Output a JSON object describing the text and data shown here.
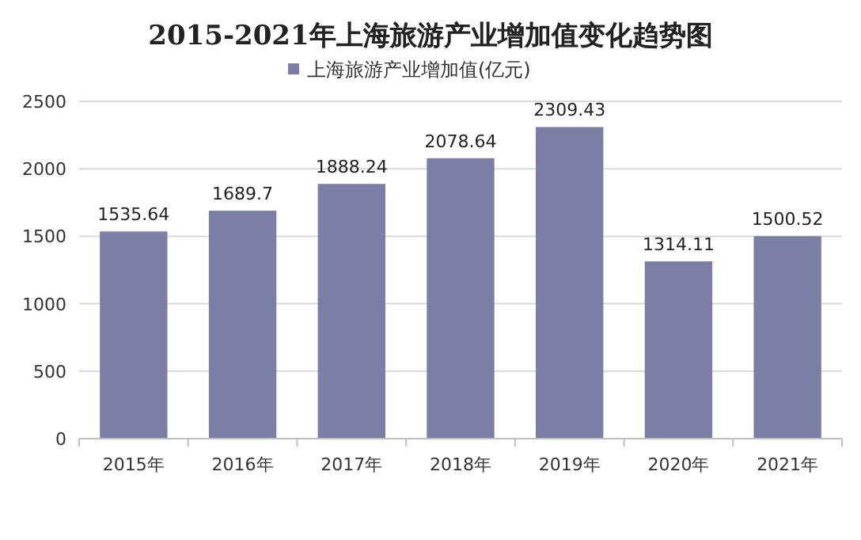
{
  "chart_data": {
    "type": "bar",
    "title": "2015-2021年上海旅游产业增加值变化趋势图",
    "categories": [
      "2015年",
      "2016年",
      "2017年",
      "2018年",
      "2019年",
      "2020年",
      "2021年"
    ],
    "series": [
      {
        "name": "上海旅游产业增加值(亿元)",
        "color": "#7b7fa6",
        "values": [
          1535.64,
          1689.7,
          1888.24,
          2078.64,
          2309.43,
          1314.11,
          1500.52
        ]
      }
    ],
    "ylim": [
      0,
      2500
    ],
    "yticks": [
      0,
      500,
      1000,
      1500,
      2000,
      2500
    ],
    "grid": "y",
    "legend": "top",
    "data_labels": true
  }
}
